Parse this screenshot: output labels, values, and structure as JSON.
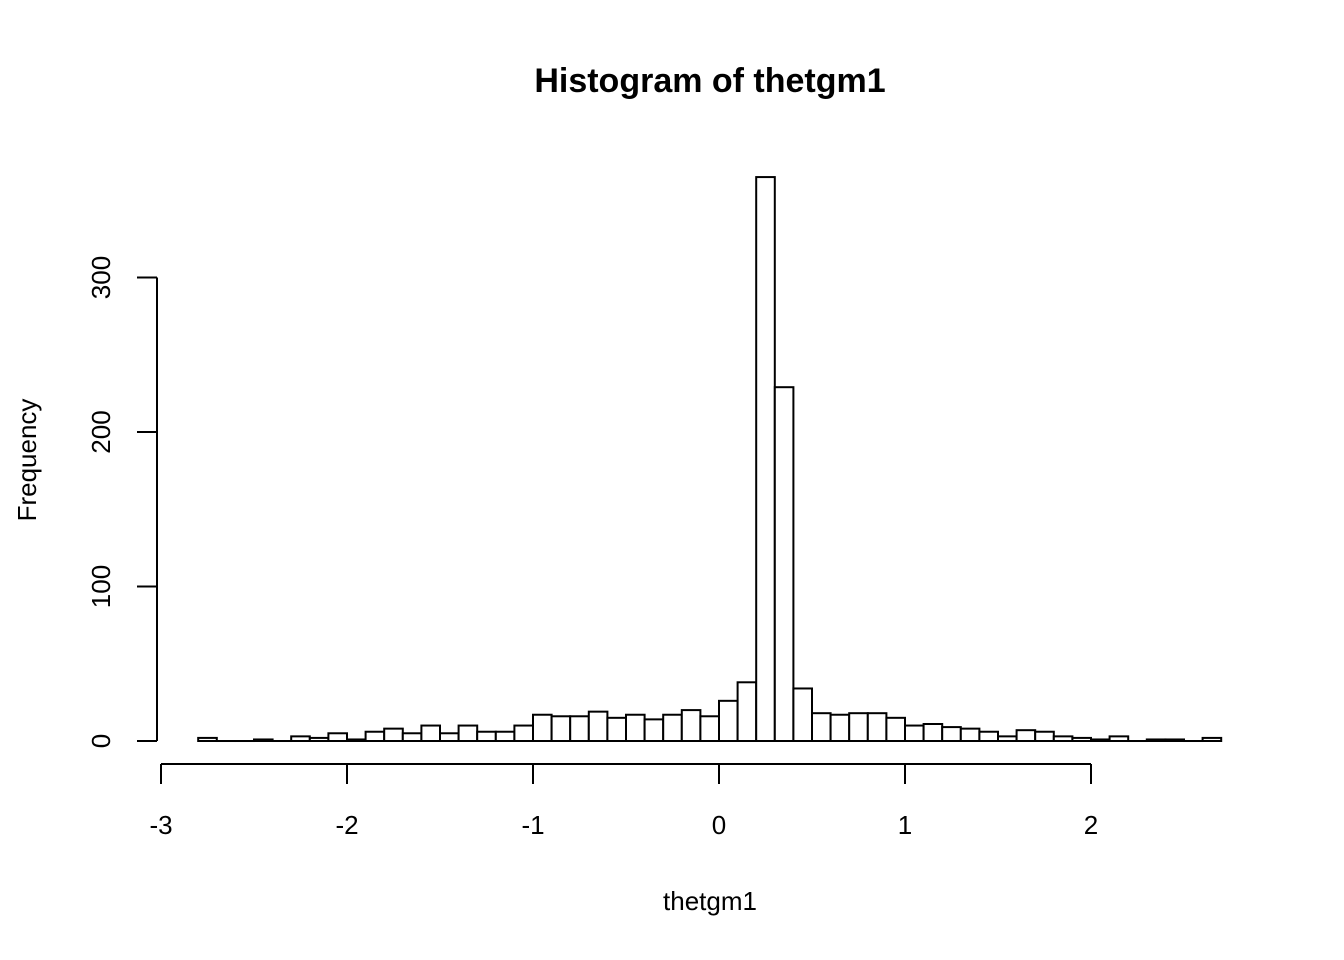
{
  "chart_data": {
    "type": "bar",
    "title": "Histogram of thetgm1",
    "xlabel": "thetgm1",
    "ylabel": "Frequency",
    "xlim": [
      -3,
      2.7
    ],
    "ylim": [
      0,
      370
    ],
    "x_ticks": [
      -3,
      -2,
      -1,
      0,
      1,
      2
    ],
    "x_tick_labels": [
      "-3",
      "-2",
      "-1",
      "0",
      "1",
      "2"
    ],
    "y_ticks": [
      0,
      100,
      200,
      300
    ],
    "y_tick_labels": [
      "0",
      "100",
      "200",
      "300"
    ],
    "grid": false,
    "bin_width": 0.1,
    "bin_start": -2.8,
    "counts": [
      2,
      0,
      0,
      1,
      0,
      3,
      2,
      5,
      1,
      6,
      8,
      5,
      10,
      5,
      10,
      6,
      6,
      10,
      17,
      16,
      16,
      19,
      15,
      17,
      14,
      17,
      20,
      16,
      26,
      38,
      365,
      229,
      34,
      18,
      17,
      18,
      18,
      15,
      10,
      11,
      9,
      8,
      6,
      3,
      7,
      6,
      3,
      2,
      1,
      3,
      0,
      1,
      1,
      0,
      2
    ],
    "bar_fill": "#ffffff",
    "bar_stroke": "#000000"
  }
}
